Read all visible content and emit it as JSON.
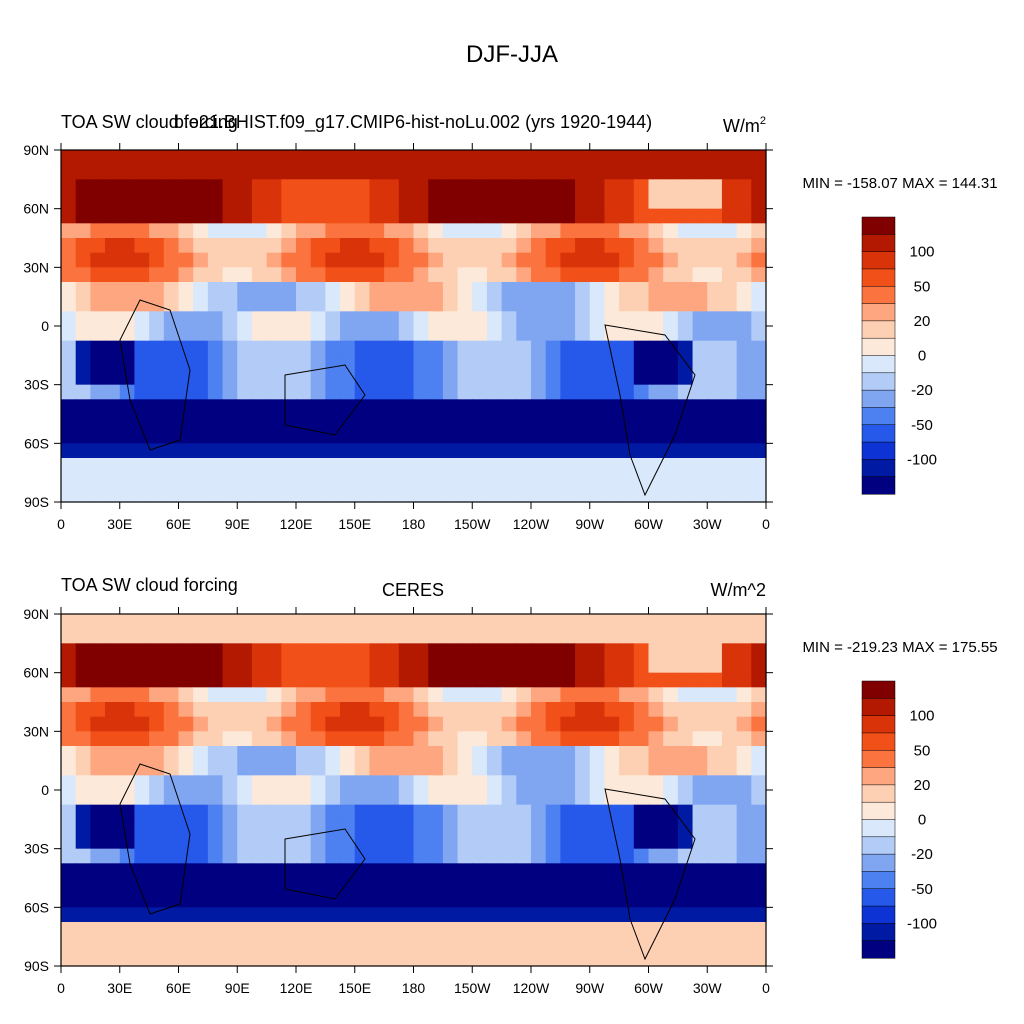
{
  "title": "DJF-JJA",
  "colors": [
    "#800000",
    "#b31900",
    "#d9330a",
    "#f25019",
    "#fb7440",
    "#fda680",
    "#fdd0b3",
    "#fde9d9",
    "#d9e8fb",
    "#b3ccf7",
    "#80a6f2",
    "#4d80f0",
    "#2659ea",
    "#0d33d4",
    "#001aa3",
    "#000080"
  ],
  "colorbar_labels": [
    "100",
    "50",
    "20",
    "0",
    "-20",
    "-50",
    "-100"
  ],
  "chart_data": [
    {
      "type": "heatmap",
      "left_title": "TOA SW cloud forcing",
      "center_title": "b.e21.BHIST.f09_g17.CMIP6-hist-noLu.002 (yrs 1920-1944)",
      "units_base": "W/m",
      "units_sup": "2",
      "stats": "MIN = -158.07 MAX = 144.31",
      "min": -158.07,
      "max": 144.31,
      "levels": [
        -100,
        -80,
        -60,
        -50,
        -40,
        -30,
        -20,
        -10,
        0,
        10,
        20,
        30,
        40,
        50,
        60,
        80,
        100
      ],
      "xticks": [
        "0",
        "30E",
        "60E",
        "90E",
        "120E",
        "150E",
        "180",
        "150W",
        "120W",
        "90W",
        "60W",
        "30W",
        "0"
      ],
      "yticks": [
        "90N",
        "60N",
        "30N",
        "0",
        "30S",
        "60S",
        "90S"
      ],
      "xlim": [
        0,
        360
      ],
      "ylim": [
        -90,
        90
      ]
    },
    {
      "type": "heatmap",
      "left_title": "TOA SW cloud forcing",
      "center_title": "CERES",
      "units_base": "W/m^2",
      "units_sup": "",
      "stats": "MIN = -219.23 MAX = 175.55",
      "min": -219.23,
      "max": 175.55,
      "levels": [
        -100,
        -80,
        -60,
        -50,
        -40,
        -30,
        -20,
        -10,
        0,
        10,
        20,
        30,
        40,
        50,
        60,
        80,
        100
      ],
      "xticks": [
        "0",
        "30E",
        "60E",
        "90E",
        "120E",
        "150E",
        "180",
        "150W",
        "120W",
        "90W",
        "60W",
        "30W",
        "0"
      ],
      "yticks": [
        "90N",
        "60N",
        "30N",
        "0",
        "30S",
        "60S",
        "90S"
      ],
      "xlim": [
        0,
        360
      ],
      "ylim": [
        -90,
        90
      ]
    }
  ]
}
